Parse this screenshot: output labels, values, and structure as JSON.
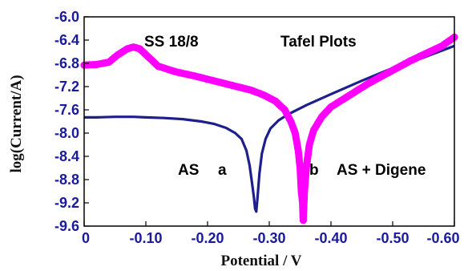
{
  "chart_data": {
    "type": "line",
    "title": "",
    "xlabel": "Potential / V",
    "ylabel": "log(Current/A)",
    "xlim": [
      0,
      -0.6
    ],
    "ylim": [
      -9.6,
      -6.0
    ],
    "x_ticks": [
      "0",
      "-0.10",
      "-0.20",
      "-0.30",
      "-0.40",
      "-0.50",
      "-0.60"
    ],
    "y_ticks": [
      "-6.0",
      "-6.4",
      "-6.8",
      "-7.2",
      "-7.6",
      "-8.0",
      "-8.4",
      "-8.8",
      "-9.2",
      "-9.6"
    ],
    "grid": false,
    "annotations": [
      {
        "text": "SS 18/8"
      },
      {
        "text": "Tafel Plots"
      },
      {
        "text": "AS"
      },
      {
        "text": "a"
      },
      {
        "text": "b"
      },
      {
        "text": "AS + Digene"
      }
    ],
    "series": [
      {
        "label": "a",
        "color": "#1f1f8c",
        "style": "line",
        "points": [
          [
            0,
            -7.73
          ],
          [
            -0.02,
            -7.73
          ],
          [
            -0.05,
            -7.72
          ],
          [
            -0.08,
            -7.72
          ],
          [
            -0.1,
            -7.73
          ],
          [
            -0.13,
            -7.74
          ],
          [
            -0.16,
            -7.76
          ],
          [
            -0.19,
            -7.8
          ],
          [
            -0.21,
            -7.84
          ],
          [
            -0.23,
            -7.91
          ],
          [
            -0.245,
            -8.0
          ],
          [
            -0.255,
            -8.1
          ],
          [
            -0.263,
            -8.3
          ],
          [
            -0.268,
            -8.55
          ],
          [
            -0.272,
            -8.85
          ],
          [
            -0.275,
            -9.1
          ],
          [
            -0.277,
            -9.3
          ],
          [
            -0.279,
            -9.35
          ],
          [
            -0.281,
            -9.1
          ],
          [
            -0.284,
            -8.7
          ],
          [
            -0.288,
            -8.35
          ],
          [
            -0.294,
            -8.1
          ],
          [
            -0.302,
            -7.92
          ],
          [
            -0.315,
            -7.78
          ],
          [
            -0.33,
            -7.68
          ],
          [
            -0.36,
            -7.52
          ],
          [
            -0.4,
            -7.33
          ],
          [
            -0.45,
            -7.1
          ],
          [
            -0.5,
            -6.88
          ],
          [
            -0.55,
            -6.7
          ],
          [
            -0.6,
            -6.5
          ]
        ]
      },
      {
        "label": "b",
        "color": "#ff00ff",
        "style": "dots",
        "points": [
          [
            0,
            -6.83
          ],
          [
            -0.02,
            -6.82
          ],
          [
            -0.04,
            -6.78
          ],
          [
            -0.055,
            -6.65
          ],
          [
            -0.07,
            -6.55
          ],
          [
            -0.08,
            -6.52
          ],
          [
            -0.09,
            -6.55
          ],
          [
            -0.1,
            -6.65
          ],
          [
            -0.12,
            -6.85
          ],
          [
            -0.15,
            -6.95
          ],
          [
            -0.18,
            -7.02
          ],
          [
            -0.21,
            -7.1
          ],
          [
            -0.24,
            -7.18
          ],
          [
            -0.27,
            -7.26
          ],
          [
            -0.29,
            -7.34
          ],
          [
            -0.31,
            -7.45
          ],
          [
            -0.325,
            -7.6
          ],
          [
            -0.335,
            -7.8
          ],
          [
            -0.342,
            -8.0
          ],
          [
            -0.347,
            -8.3
          ],
          [
            -0.35,
            -8.6
          ],
          [
            -0.352,
            -9.0
          ],
          [
            -0.354,
            -9.2
          ],
          [
            -0.355,
            -9.5
          ],
          [
            -0.357,
            -9.0
          ],
          [
            -0.36,
            -8.6
          ],
          [
            -0.365,
            -8.2
          ],
          [
            -0.372,
            -7.95
          ],
          [
            -0.385,
            -7.72
          ],
          [
            -0.4,
            -7.55
          ],
          [
            -0.43,
            -7.35
          ],
          [
            -0.46,
            -7.15
          ],
          [
            -0.5,
            -6.92
          ],
          [
            -0.53,
            -6.75
          ],
          [
            -0.56,
            -6.6
          ],
          [
            -0.58,
            -6.5
          ],
          [
            -0.6,
            -6.35
          ]
        ]
      }
    ]
  }
}
